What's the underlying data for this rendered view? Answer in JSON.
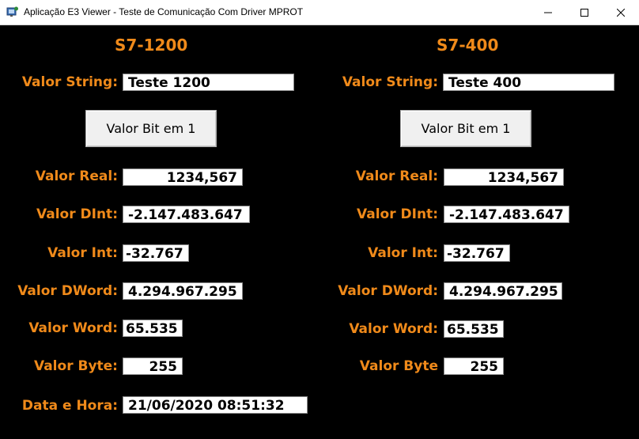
{
  "window": {
    "title": "Aplicação E3 Viewer - Teste de Comunicação Com Driver MPROT",
    "minimize_icon": "minimize-icon",
    "maximize_icon": "maximize-icon",
    "close_icon": "close-icon",
    "app_icon": "e3-viewer-app-icon"
  },
  "left": {
    "title": "S7-1200",
    "string_label": "Valor String:",
    "string_value": "Teste 1200",
    "button_label": "Valor Bit em 1",
    "real_label": "Valor Real:",
    "real_value": "1234,567",
    "dint_label": "Valor DInt:",
    "dint_value": "-2.147.483.647",
    "int_label": "Valor Int:",
    "int_value": "-32.767",
    "dword_label": "Valor DWord:",
    "dword_value": "4.294.967.295",
    "word_label": "Valor Word:",
    "word_value": "65.535",
    "byte_label": "Valor Byte:",
    "byte_value": "255",
    "datetime_label": "Data e Hora:",
    "datetime_value": "21/06/2020 08:51:32"
  },
  "right": {
    "title": "S7-400",
    "string_label": "Valor String:",
    "string_value": "Teste 400",
    "button_label": "Valor Bit em 1",
    "real_label": "Valor Real:",
    "real_value": "1234,567",
    "dint_label": "Valor DInt:",
    "dint_value": "-2.147.483.647",
    "int_label": "Valor Int:",
    "int_value": "-32.767",
    "dword_label": "Valor DWord:",
    "dword_value": "4.294.967.295",
    "word_label": "Valor Word:",
    "word_value": "65.535",
    "byte_label": "Valor Byte",
    "byte_value": "255"
  },
  "colors": {
    "accent": "#f08a1a",
    "background": "#000000",
    "field": "#ffffff"
  }
}
